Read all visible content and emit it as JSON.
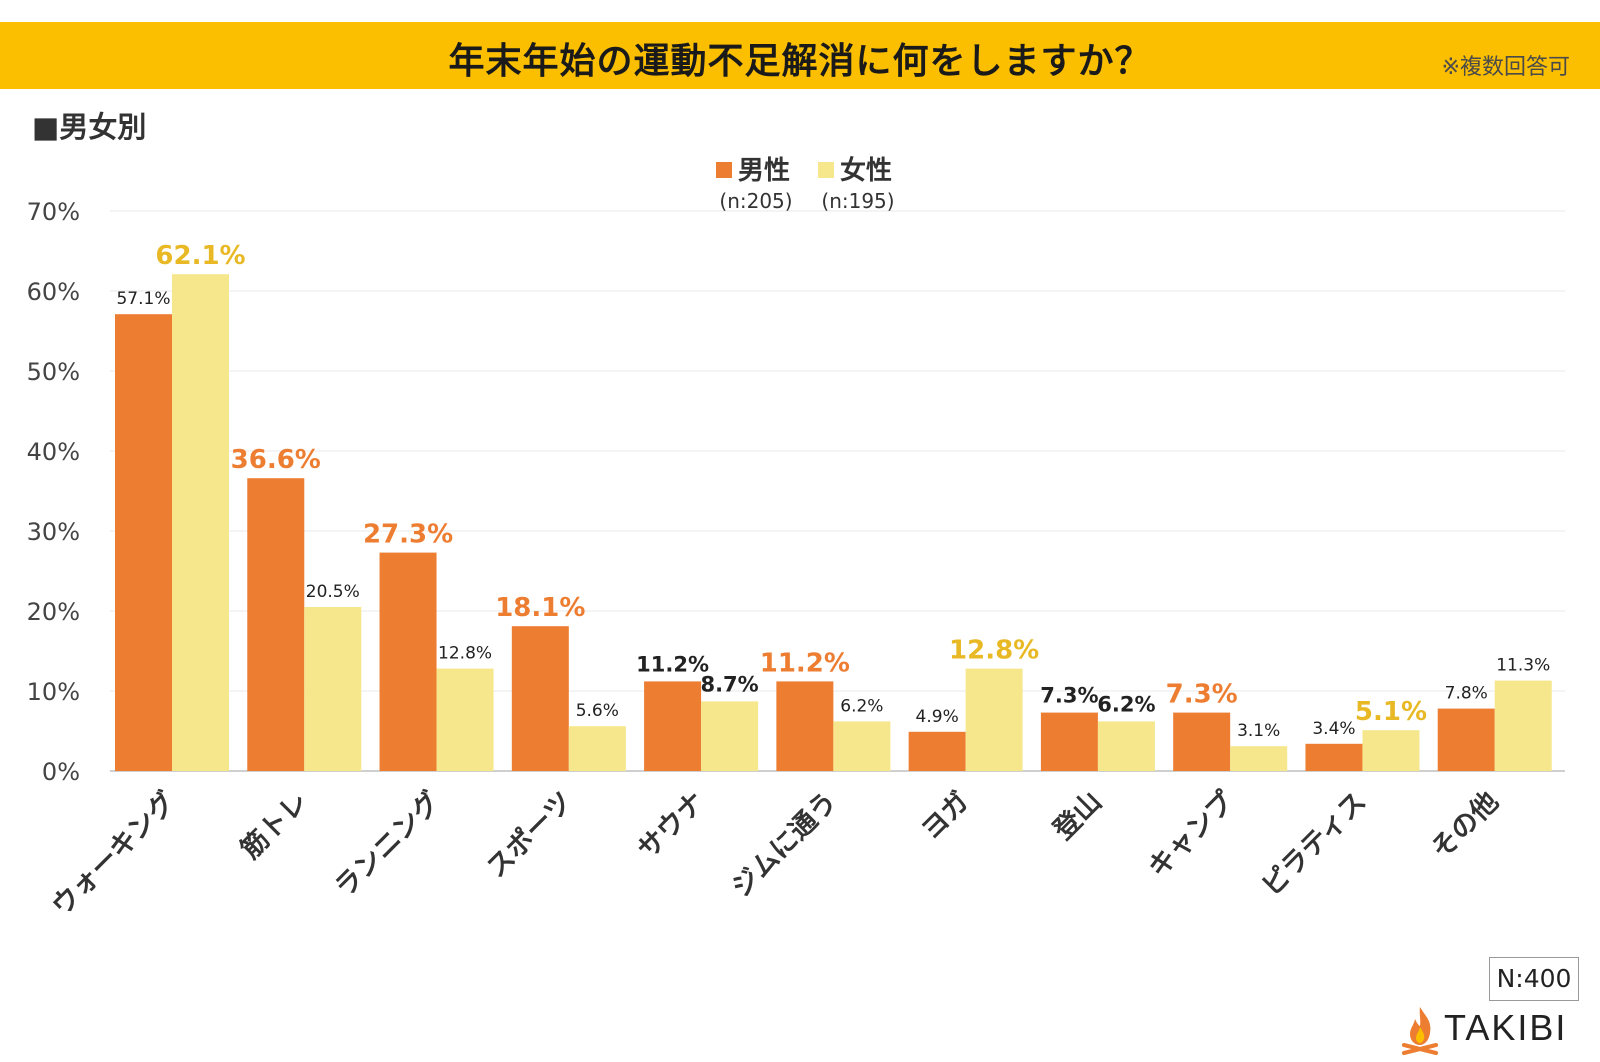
{
  "header": {
    "title": "年末年始の運動不足解消に何をしますか？",
    "note": "※複数回答可"
  },
  "section_label": "■男女別",
  "footer": {
    "sample_size": "N:400",
    "brand": "TAKIBI"
  },
  "colors": {
    "male": "#ed7d31",
    "female": "#f6e68c",
    "male_highlight": "#ed7d31",
    "female_highlight": "#e8b925",
    "header": "#fbbf00"
  },
  "chart_data": {
    "type": "bar",
    "title": "年末年始の運動不足解消に何をしますか？",
    "categories": [
      "ウォーキング",
      "筋トレ",
      "ランニング",
      "スポーツ",
      "サウナ",
      "ジムに通う",
      "ヨガ",
      "登山",
      "キャンプ",
      "ピラティス",
      "その他"
    ],
    "series": [
      {
        "name": "男性",
        "sample": "(n:205)",
        "values": [
          57.1,
          36.6,
          27.3,
          18.1,
          11.2,
          11.2,
          4.9,
          7.3,
          7.3,
          3.4,
          7.8
        ],
        "labels": [
          "57.1%",
          "36.6%",
          "27.3%",
          "18.1%",
          "11.2%",
          "11.2%",
          "4.9%",
          "7.3%",
          "7.3%",
          "3.4%",
          "7.8%"
        ],
        "label_style": [
          "normal",
          "highlight",
          "highlight",
          "highlight",
          "bold",
          "highlight",
          "normal",
          "bold",
          "highlight",
          "normal",
          "normal"
        ]
      },
      {
        "name": "女性",
        "sample": "(n:195)",
        "values": [
          62.1,
          20.5,
          12.8,
          5.6,
          8.7,
          6.2,
          12.8,
          6.2,
          3.1,
          5.1,
          11.3
        ],
        "labels": [
          "62.1%",
          "20.5%",
          "12.8%",
          "5.6%",
          "8.7%",
          "6.2%",
          "12.8%",
          "6.2%",
          "3.1%",
          "5.1%",
          "11.3%"
        ],
        "label_style": [
          "highlight",
          "normal",
          "normal",
          "normal",
          "bold",
          "normal",
          "highlight",
          "bold",
          "normal",
          "highlight",
          "normal"
        ]
      }
    ],
    "ylim": [
      0,
      70
    ],
    "yticks": [
      0,
      10,
      20,
      30,
      40,
      50,
      60,
      70
    ],
    "ytick_labels": [
      "0%",
      "10%",
      "20%",
      "30%",
      "40%",
      "50%",
      "60%",
      "70%"
    ],
    "xlabel": "",
    "ylabel": "",
    "grid": true,
    "legend": "top-center"
  }
}
